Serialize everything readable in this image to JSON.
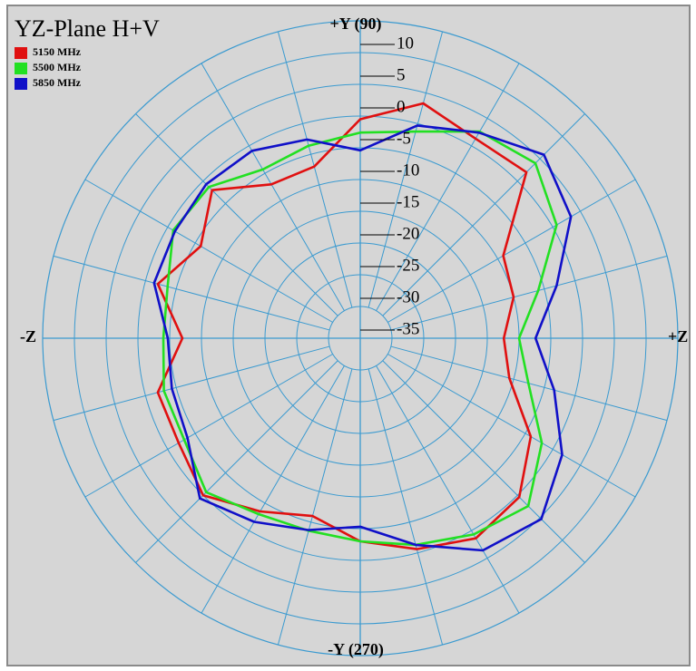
{
  "chart_data": {
    "type": "polar",
    "title": "YZ-Plane   H+V",
    "theta": [
      0,
      15,
      30,
      45,
      60,
      75,
      90,
      105,
      120,
      135,
      150,
      165,
      180,
      195,
      210,
      225,
      240,
      255,
      270,
      285,
      300,
      315,
      330,
      345
    ],
    "series": [
      {
        "name": "5150 MHz",
        "color": "#e01010",
        "values": [
          -12.4,
          -10,
          -9,
          2,
          1.3,
          3.3,
          -0.5,
          -7,
          -7,
          -2,
          -6,
          -2,
          -7,
          -2,
          -2,
          0,
          -3.5,
          -6,
          -3,
          -0.6,
          1.4,
          0.4,
          -4,
          -10.7
        ]
      },
      {
        "name": "5500 MHz",
        "color": "#22e022",
        "values": [
          -10,
          -6,
          0.7,
          4,
          2.6,
          -1.3,
          -2.6,
          -3.6,
          -4.3,
          -1.3,
          -1,
          -3.6,
          -4,
          -3,
          -3,
          -0.7,
          -3,
          -3.6,
          -3,
          -1.3,
          0.7,
          2.4,
          -2,
          -7.6
        ]
      },
      {
        "name": "5850 MHz",
        "color": "#1010c8",
        "values": [
          -7.4,
          -3,
          3.3,
          5.9,
          2.4,
          -0.3,
          -5.4,
          -2.6,
          -0.9,
          -0.7,
          -1.3,
          -1.4,
          -4.7,
          -4.3,
          -3.6,
          0.7,
          -1.6,
          -3.7,
          -5.3,
          -1.3,
          3.6,
          5.3,
          1.7,
          -3.4
        ]
      }
    ],
    "rlim": [
      -35,
      15
    ],
    "rticks": [
      10,
      5,
      0,
      -5,
      -10,
      -15,
      -20,
      -25,
      -30,
      -35
    ],
    "axis_labels": {
      "top": "+Y (90)",
      "left": "-Z",
      "bottom": "-Y (270)",
      "right": "+Z"
    },
    "grid_color": "#3a9ad0",
    "legend": "top-left"
  }
}
